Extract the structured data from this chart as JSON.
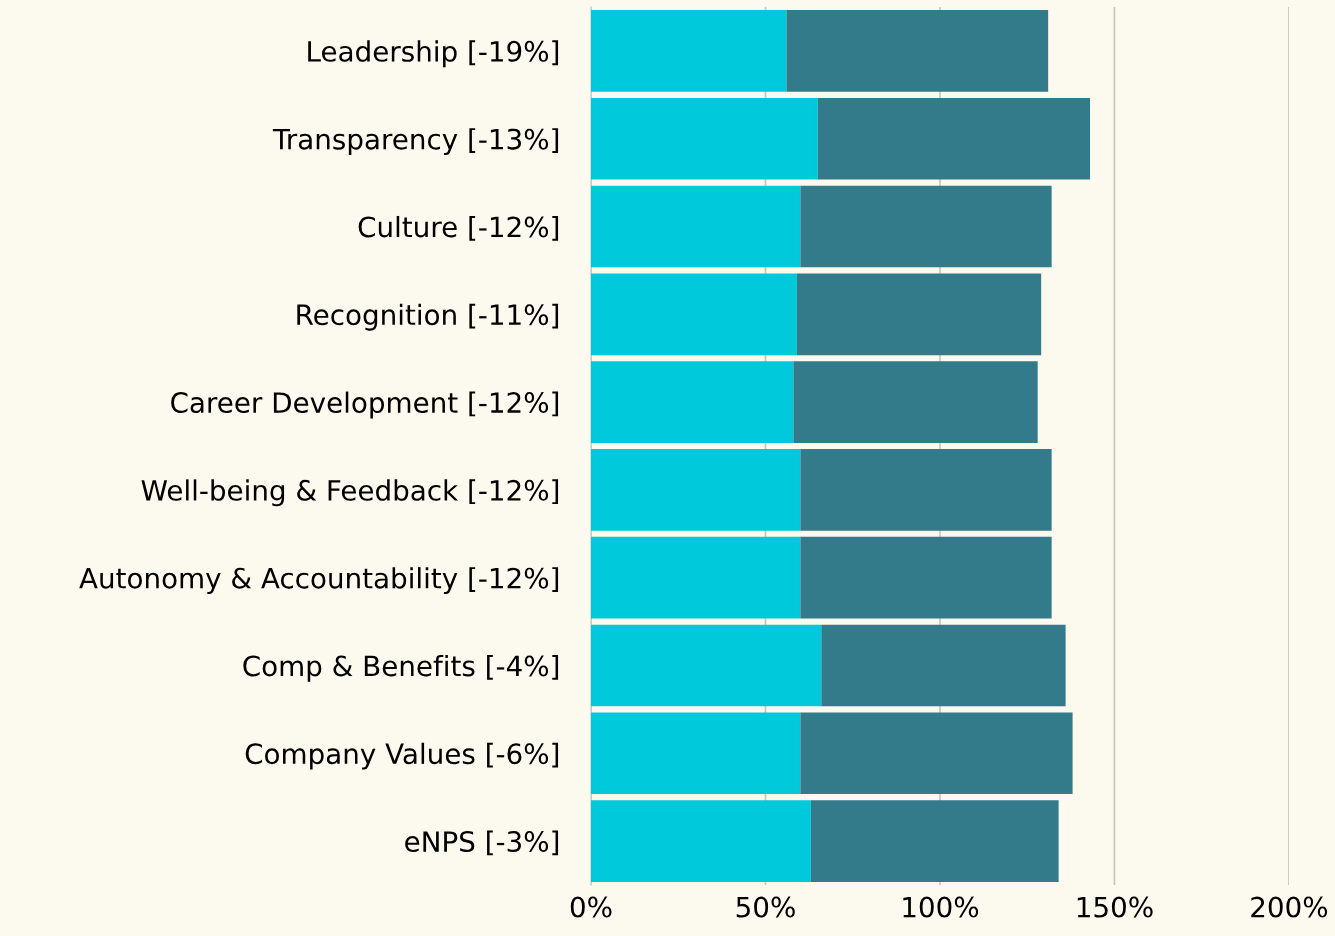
{
  "chart_data": {
    "type": "bar",
    "orientation": "horizontal",
    "stacked": true,
    "categories": [
      "Leadership [-19%]",
      "Transparency [-13%]",
      "Culture [-12%]",
      "Recognition [-11%]",
      "Career Development [-12%]",
      "Well-being & Feedback [-12%]",
      "Autonomy & Accountability [-12%]",
      "Comp & Benefits [-4%]",
      "Company Values [-6%]",
      "eNPS [-3%]"
    ],
    "series": [
      {
        "color": "#00c9db",
        "values": [
          56,
          65,
          60,
          59,
          58,
          60,
          60,
          66,
          60,
          63
        ]
      },
      {
        "color": "#337a8a",
        "values": [
          75,
          78,
          72,
          70,
          70,
          72,
          72,
          70,
          78,
          71
        ]
      }
    ],
    "xlim": [
      0,
      200
    ],
    "xticks": [
      {
        "value": 0,
        "label": "0%"
      },
      {
        "value": 50,
        "label": "50%"
      },
      {
        "value": 100,
        "label": "100%"
      },
      {
        "value": 150,
        "label": "150%"
      },
      {
        "value": 200,
        "label": "200%"
      }
    ],
    "grid": "x",
    "legend": false
  }
}
